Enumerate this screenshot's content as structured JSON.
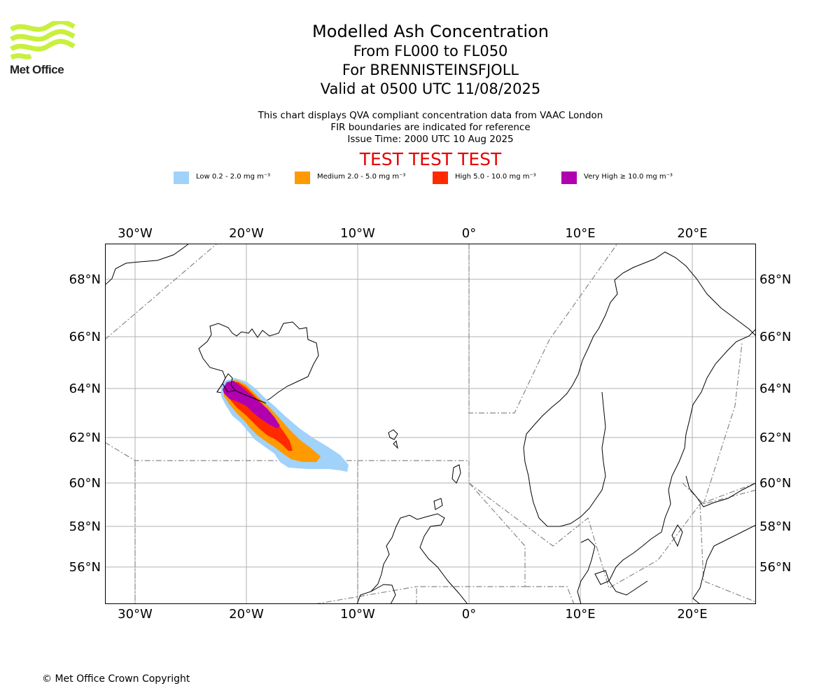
{
  "logo": {
    "text": "Met Office",
    "color": "#c8f03c"
  },
  "titles": {
    "main": "Modelled Ash Concentration",
    "levels": "From FL000 to FL050",
    "volcano": "For BRENNISTEINSFJOLL",
    "valid": "Valid at 0500 UTC 11/08/2025"
  },
  "notes": {
    "line1": "This chart displays QVA compliant concentration data from VAAC London",
    "line2": "FIR boundaries are indicated for reference",
    "line3": "Issue Time: 2000 UTC 10 Aug 2025"
  },
  "banner": {
    "text": "TEST TEST TEST",
    "color": "#e60000"
  },
  "legend": [
    {
      "label": "Low 0.2 - 2.0 mg m⁻³",
      "color": "#a0d2fa"
    },
    {
      "label": "Medium 2.0 - 5.0 mg m⁻³",
      "color": "#ff9a00"
    },
    {
      "label": "High 5.0 - 10.0 mg m⁻³",
      "color": "#ff2a00"
    },
    {
      "label": "Very High ≥ 10.0 mg m⁻³",
      "color": "#b000b0"
    }
  ],
  "map": {
    "lon_labels": [
      "30°W",
      "20°W",
      "10°W",
      "0°",
      "10°E",
      "20°E"
    ],
    "lat_labels": [
      "68°N",
      "66°N",
      "64°N",
      "62°N",
      "60°N",
      "58°N",
      "56°N"
    ],
    "grid": true
  },
  "copyright": "© Met Office Crown Copyright"
}
